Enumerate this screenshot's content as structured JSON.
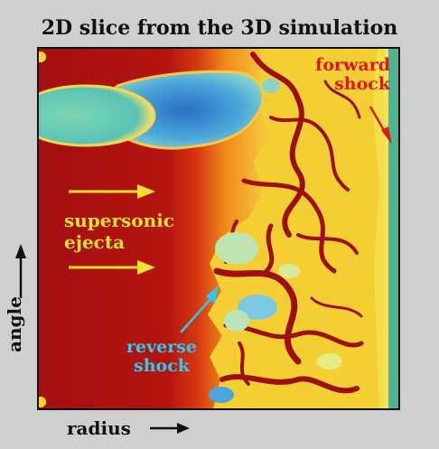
{
  "title": "2D slice from the 3D simulation",
  "labels": {
    "forward_shock": [
      "forward",
      "shock"
    ],
    "supersonic_ejecta": [
      "supersonic",
      "ejecta"
    ],
    "reverse_shock": [
      "reverse",
      "shock"
    ]
  },
  "axes": {
    "x": "radius",
    "y": "angle"
  },
  "colors": {
    "ejecta": "#a8100f",
    "shocked": "#f3d72a",
    "ambient": "#f2e24a",
    "dense_clump": "#4aa6d8",
    "forward_label": "#e01818",
    "ejecta_label": "#f2e030",
    "reverse_label": "#30c8f0",
    "background": "#cfcfcf"
  }
}
